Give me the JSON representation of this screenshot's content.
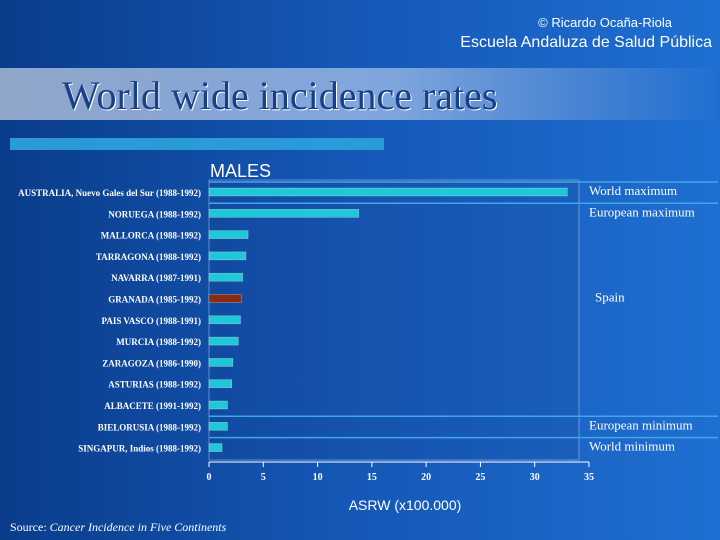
{
  "header": {
    "copyright": "© Ricardo Ocaña-Riola",
    "organization": "Escuela Andaluza de Salud Pública",
    "title": "World wide incidence rates"
  },
  "source": {
    "prefix": "Source: ",
    "title": "Cancer Incidence in Five Continents"
  },
  "colors": {
    "bar": "#1fc8d6",
    "highlight": "#8a2a10",
    "line": "#3fa7e8"
  },
  "chart_data": {
    "type": "bar",
    "orientation": "horizontal",
    "title": "MALES",
    "xlabel": "ASRW (x100.000)",
    "xlim": [
      0,
      35
    ],
    "xticks": [
      0,
      5,
      10,
      15,
      20,
      25,
      30,
      35
    ],
    "categories": [
      "AUSTRALIA, Nuevo Gales del Sur (1988-1992)",
      "NORUEGA (1988-1992)",
      "MALLORCA (1988-1992)",
      "TARRAGONA (1988-1992)",
      "NAVARRA (1987-1991)",
      "GRANADA (1985-1992)",
      "PAIS VASCO (1988-1991)",
      "MURCIA (1988-1992)",
      "ZARAGOZA (1986-1990)",
      "ASTURIAS (1988-1992)",
      "ALBACETE (1991-1992)",
      "BIELORUSIA (1988-1992)",
      "SINGAPUR, Indios (1988-1992)"
    ],
    "values": [
      33,
      13.8,
      3.6,
      3.4,
      3.1,
      3.0,
      2.9,
      2.7,
      2.2,
      2.1,
      1.7,
      1.7,
      1.2
    ],
    "highlight_index": 5,
    "annotations": [
      {
        "text": "World maximum",
        "index": 0
      },
      {
        "text": "European maximum",
        "index": 1
      },
      {
        "text": "Spain",
        "index": 5
      },
      {
        "text": "European minimum",
        "index": 11
      },
      {
        "text": "World minimum",
        "index": 12
      }
    ]
  }
}
